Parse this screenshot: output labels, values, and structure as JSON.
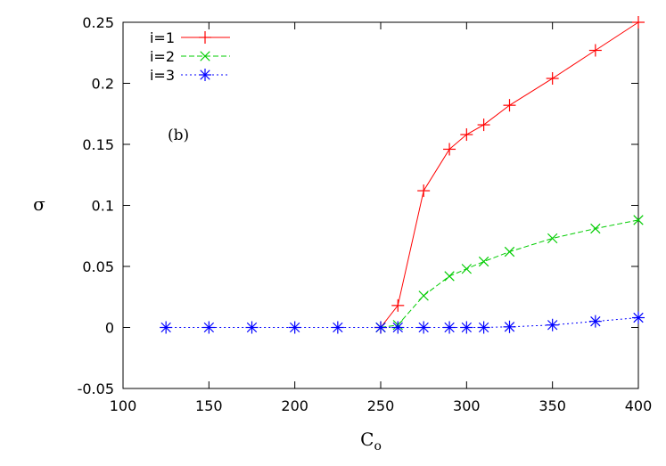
{
  "chart_data": {
    "type": "line",
    "xlabel": "C",
    "xlabel_subscript": "o",
    "ylabel": "σ",
    "annotation": "(b)",
    "xlim": [
      100,
      400
    ],
    "ylim": [
      -0.05,
      0.25
    ],
    "xticks": [
      100,
      150,
      200,
      250,
      300,
      350,
      400
    ],
    "yticks": [
      -0.05,
      0,
      0.05,
      0.1,
      0.15,
      0.2,
      0.25
    ],
    "xtick_labels": [
      "100",
      "150",
      "200",
      "250",
      "300",
      "350",
      "400"
    ],
    "ytick_labels": [
      "-0.05",
      "0",
      "0.05",
      "0.1",
      "0.15",
      "0.2",
      "0.25"
    ],
    "grid": false,
    "legend_position": "top-left",
    "series": [
      {
        "name": "i=1",
        "color": "#ff0000",
        "dash": "solid",
        "marker": "plus",
        "x": [
          250,
          260,
          275,
          290,
          300,
          310,
          325,
          350,
          375,
          400
        ],
        "y": [
          0,
          0.018,
          0.112,
          0.146,
          0.158,
          0.166,
          0.182,
          0.204,
          0.227,
          0.25
        ]
      },
      {
        "name": "i=2",
        "color": "#00cc00",
        "dash": "dashed",
        "marker": "cross",
        "x": [
          250,
          260,
          275,
          290,
          300,
          310,
          325,
          350,
          375,
          400
        ],
        "y": [
          0,
          0.002,
          0.026,
          0.042,
          0.048,
          0.054,
          0.062,
          0.073,
          0.081,
          0.088
        ]
      },
      {
        "name": "i=3",
        "color": "#0000ff",
        "dash": "dotted",
        "marker": "star",
        "x": [
          125,
          150,
          175,
          200,
          225,
          250,
          260,
          275,
          290,
          300,
          310,
          325,
          350,
          375,
          400
        ],
        "y": [
          0,
          0,
          0,
          0,
          0,
          0,
          0,
          0,
          0,
          0,
          0,
          0.0005,
          0.002,
          0.005,
          0.008
        ]
      }
    ]
  }
}
